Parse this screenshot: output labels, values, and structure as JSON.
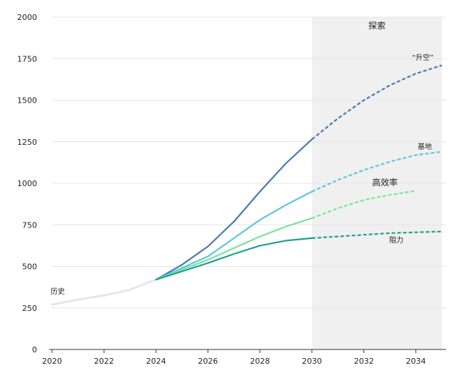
{
  "chart_data": {
    "type": "line",
    "title": "",
    "xlabel": "",
    "ylabel": "",
    "xlim": [
      2020,
      2035
    ],
    "ylim": [
      0,
      2000
    ],
    "x_ticks": [
      "2020",
      "2022",
      "2024",
      "2026",
      "2028",
      "2030",
      "2032",
      "2034"
    ],
    "y_ticks": [
      "0",
      "250",
      "500",
      "750",
      "1000",
      "1250",
      "1500",
      "1750",
      "2000"
    ],
    "grid": "horizontal",
    "shaded_region": {
      "from": 2030,
      "to": 2035,
      "label": "探索",
      "color": "#f0f0f0"
    },
    "series": [
      {
        "key": "history",
        "name": "历史",
        "color": "#e6e6e6",
        "dashed_from": null,
        "x": [
          2020,
          2021,
          2022,
          2023,
          2024
        ],
        "values": [
          270,
          300,
          325,
          360,
          420
        ]
      },
      {
        "key": "liftoff",
        "name": "“升空”",
        "color": "#4a78b4",
        "dashed_from": 2030,
        "x": [
          2024,
          2025,
          2026,
          2027,
          2028,
          2029,
          2030,
          2031,
          2032,
          2033,
          2034,
          2035
        ],
        "values": [
          420,
          510,
          620,
          770,
          950,
          1120,
          1265,
          1390,
          1500,
          1590,
          1660,
          1710
        ]
      },
      {
        "key": "base",
        "name": "基地",
        "color": "#5bc5e6",
        "dashed_from": 2030,
        "x": [
          2024,
          2025,
          2026,
          2027,
          2028,
          2029,
          2030,
          2031,
          2032,
          2033,
          2034,
          2035
        ],
        "values": [
          420,
          490,
          560,
          670,
          780,
          870,
          950,
          1020,
          1080,
          1130,
          1170,
          1190
        ]
      },
      {
        "key": "efficiency",
        "name": "高效率",
        "color": "#7be497",
        "dashed_from": 2030,
        "x": [
          2024,
          2025,
          2026,
          2027,
          2028,
          2029,
          2030,
          2031,
          2032,
          2033,
          2034
        ],
        "values": [
          420,
          480,
          540,
          610,
          680,
          740,
          790,
          850,
          900,
          930,
          955
        ]
      },
      {
        "key": "resistance",
        "name": "阻力",
        "color": "#1ea08f",
        "dashed_from": 2030,
        "x": [
          2024,
          2025,
          2026,
          2027,
          2028,
          2029,
          2030,
          2031,
          2032,
          2033,
          2034,
          2035
        ],
        "values": [
          420,
          470,
          520,
          575,
          625,
          655,
          670,
          680,
          690,
          700,
          705,
          710
        ]
      }
    ]
  }
}
